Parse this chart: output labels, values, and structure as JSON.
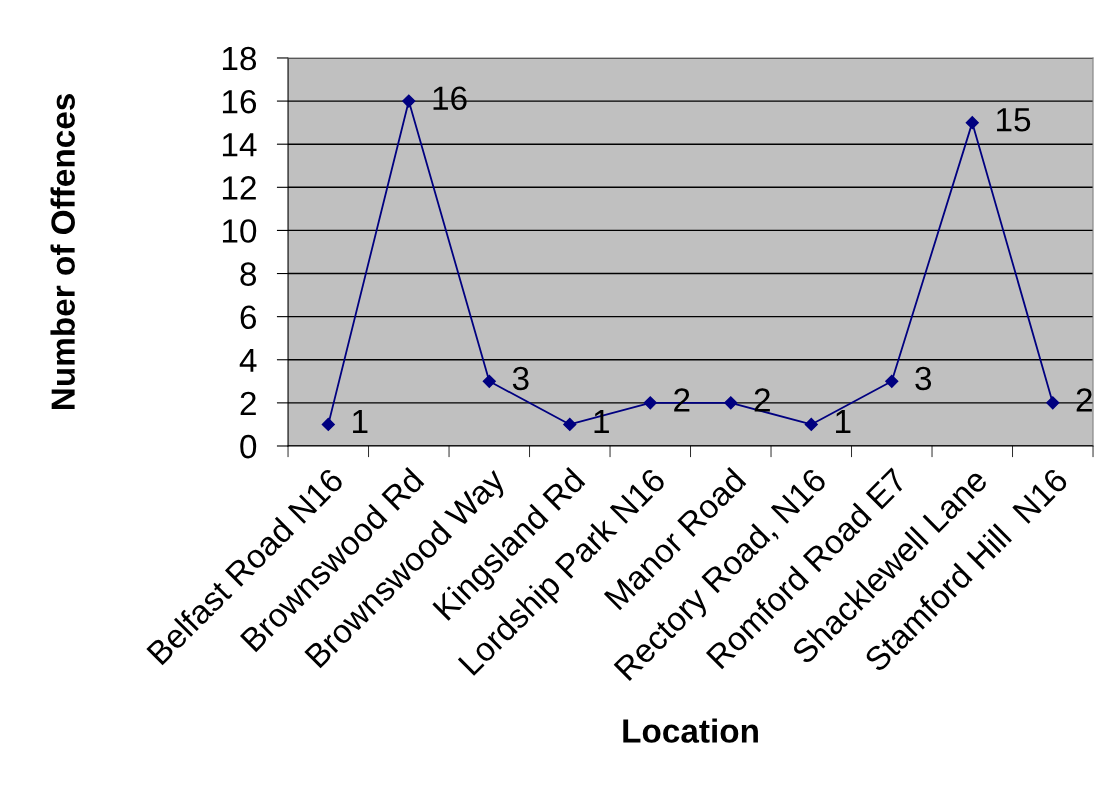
{
  "chart_data": {
    "type": "line",
    "xlabel": "Location",
    "ylabel": "Number of Offences",
    "categories": [
      "Belfast Road N16",
      "Brownswood Rd",
      "Brownswood Way",
      "Kingsland Rd",
      "Lordship Park N16",
      "Manor Road",
      "Rectory Road, N16",
      "Romford Road E7",
      "Shacklewell Lane",
      "Stamford Hill  N16"
    ],
    "series": [
      {
        "color": "#000080",
        "values": [
          1,
          16,
          3,
          1,
          2,
          2,
          1,
          3,
          15,
          2
        ]
      }
    ],
    "ylim": [
      0,
      18
    ],
    "yticks": [
      0,
      2,
      4,
      6,
      8,
      10,
      12,
      14,
      16,
      18
    ],
    "grid": "y",
    "marker": "diamond",
    "line_style": "solid",
    "data_labels": true
  }
}
